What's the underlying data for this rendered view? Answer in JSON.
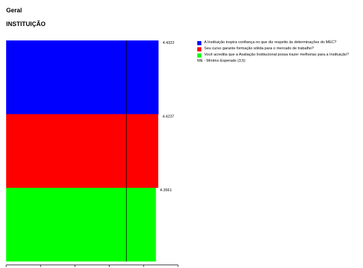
{
  "header": {
    "section": "Geral",
    "title": "INSTITUIÇÃO"
  },
  "chart_data": {
    "type": "bar",
    "orientation": "horizontal",
    "stacked_vertically": true,
    "categories": [
      "A Instituição inspira confiança no que diz respeito às determinações do MEC?",
      "Seu curso garante formação sólida para o mercado de trabalho?",
      "Você acredita que a Avaliação Institucional possa trazer melhorias para a Instituição?"
    ],
    "values": [
      4.4322,
      4.4237,
      4.3561
    ],
    "colors": [
      "#0000ff",
      "#ff0000",
      "#00ff00"
    ],
    "xlim": [
      0,
      5
    ],
    "reference_line": {
      "label": "ME - Mínimo Esperado (3,5)",
      "value": 3.5
    },
    "axis_tick_labels": [
      "",
      "",
      "",
      "",
      "",
      ""
    ],
    "legend_position": "right"
  },
  "legend": {
    "items": [
      {
        "label": "A Instituição inspira confiança no que diz respeito às determinações do MEC?",
        "color": "#0000ff"
      },
      {
        "label": "Seu curso garante formação sólida para o mercado de trabalho?",
        "color": "#ff0000"
      },
      {
        "label": "Você acredita que a Avaliação Institucional possa trazer melhorias para a Instituição?",
        "color": "#00ff00"
      }
    ],
    "note": "ME - Mínimo Esperado (3,5)"
  }
}
